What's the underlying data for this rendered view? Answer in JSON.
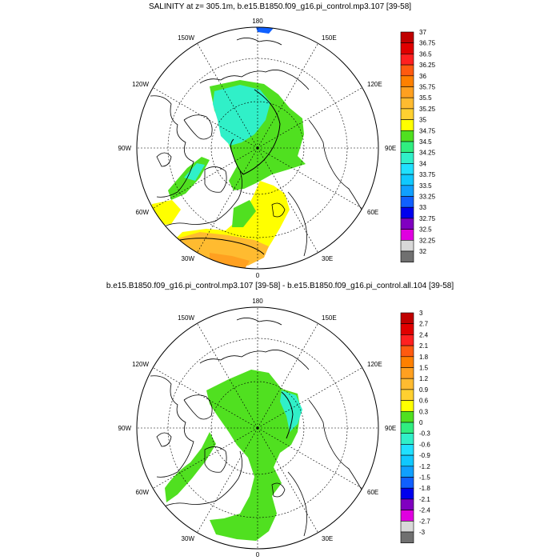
{
  "panels": [
    {
      "id": "top",
      "title": "SALINITY at z= 305.1m, b.e15.B1850.f09_g16.pi_control.mp3.107 [39-58]",
      "longitude_labels": [
        "180",
        "150E",
        "120E",
        "90E",
        "60E",
        "30E",
        "0",
        "30W",
        "60W",
        "90W",
        "120W",
        "150W"
      ],
      "colorbar": {
        "labels": [
          "37",
          "36.75",
          "36.5",
          "36.25",
          "36",
          "35.75",
          "35.5",
          "35.25",
          "35",
          "34.75",
          "34.5",
          "34.25",
          "34",
          "33.75",
          "33.5",
          "33.25",
          "33",
          "32.75",
          "32.5",
          "32.25",
          "32"
        ],
        "colors": [
          "#c00000",
          "#e00000",
          "#ff2020",
          "#ff5a10",
          "#ff8000",
          "#ffa020",
          "#ffbb30",
          "#ffd030",
          "#ffff00",
          "#50e020",
          "#30ee80",
          "#30f0c8",
          "#20e0ff",
          "#10c8ff",
          "#10a0ff",
          "#1060ff",
          "#0000ee",
          "#8000c0",
          "#e000e0",
          "#d8d8d8",
          "#707070"
        ]
      }
    },
    {
      "id": "bottom",
      "title": "b.e15.B1850.f09_g16.pi_control.mp3.107 [39-58] - b.e15.B1850.f09_g16.pi_control.all.104 [39-58]",
      "longitude_labels": [
        "180",
        "150E",
        "120E",
        "90E",
        "60E",
        "30E",
        "0",
        "30W",
        "60W",
        "90W",
        "120W",
        "150W"
      ],
      "colorbar": {
        "labels": [
          "3",
          "2.7",
          "2.4",
          "2.1",
          "1.8",
          "1.5",
          "1.2",
          "0.9",
          "0.6",
          "0.3",
          "0",
          "-0.3",
          "-0.6",
          "-0.9",
          "-1.2",
          "-1.5",
          "-1.8",
          "-2.1",
          "-2.4",
          "-2.7",
          "-3"
        ],
        "colors": [
          "#c00000",
          "#e00000",
          "#ff2020",
          "#ff5a10",
          "#ff8000",
          "#ffa020",
          "#ffbb30",
          "#ffd030",
          "#ffff00",
          "#50e020",
          "#30ee80",
          "#30f0c8",
          "#20e0ff",
          "#10c8ff",
          "#10a0ff",
          "#1060ff",
          "#0000ee",
          "#8000c0",
          "#e000e0",
          "#d8d8d8",
          "#707070"
        ]
      }
    }
  ]
}
